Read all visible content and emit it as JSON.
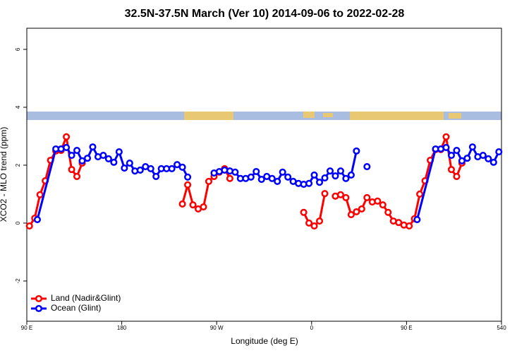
{
  "chart_data": {
    "type": "line",
    "title": "32.5N-37.5N March (Ver 10)   2014-09-06 to 2022-02-28",
    "xlabel": "Longitude (deg E)",
    "ylabel": "XCO2 - MLO trend (ppm)",
    "xlim": [
      90,
      540
    ],
    "ylim": [
      -3.39,
      6.73
    ],
    "xticks": [
      {
        "value": 90,
        "label": "90 E"
      },
      180,
      {
        "value": 270,
        "label": "90 W"
      },
      {
        "value": 360,
        "label": "0"
      },
      {
        "value": 450,
        "label": "90 E"
      },
      540
    ],
    "yticks": [
      -2,
      0,
      2,
      4,
      6
    ],
    "legend": "bottom-left",
    "series": [
      {
        "name": "Land (Nadir&Glint)",
        "color": "#ff0000",
        "x": [
          92.5,
          97.5,
          102.5,
          107.5,
          112.5,
          117.5,
          122.5,
          127.5,
          132.5,
          137.5,
          142.5,
          147.5,
          237.5,
          242.5,
          247.5,
          252.5,
          257.5,
          262.5,
          267.5,
          272.5,
          277.5,
          282.5,
          287.5,
          352.5,
          357.5,
          362.5,
          367.5,
          372.5,
          377.5,
          382.5,
          387.5,
          392.5,
          397.5,
          402.5,
          407.5,
          412.5,
          417.5,
          422.5,
          427.5,
          432.5,
          437.5,
          442.5,
          447.5,
          452.5,
          457.5,
          462.5,
          467.5,
          472.5,
          477.5,
          482.5,
          487.5,
          492.5,
          497.5,
          502.5
        ],
        "values": [
          -0.1,
          0.17,
          0.98,
          1.46,
          2.17,
          2.49,
          2.51,
          2.98,
          1.85,
          1.61,
          2.07,
          null,
          0.66,
          1.32,
          0.63,
          0.49,
          0.56,
          1.44,
          1.61,
          1.76,
          1.88,
          1.54,
          null,
          0.37,
          0,
          -0.1,
          0.07,
          1.02,
          null,
          0.93,
          0.98,
          0.88,
          0.29,
          0.39,
          0.49,
          0.88,
          0.73,
          0.76,
          0.63,
          0.37,
          0.07,
          0.02,
          -0.07,
          -0.1,
          0.15,
          1.0,
          1.46,
          2.17,
          2.54,
          2.54,
          2.98,
          1.85,
          1.61,
          2.07
        ]
      },
      {
        "name": "Ocean (Glint)",
        "color": "#0000ff",
        "x": [
          100,
          117.5,
          122.5,
          127.5,
          132.5,
          137.5,
          142.5,
          147.5,
          152.5,
          157.5,
          162.5,
          167.5,
          172.5,
          177.5,
          182.5,
          187.5,
          192.5,
          197.5,
          202.5,
          207.5,
          212.5,
          217.5,
          222.5,
          227.5,
          232.5,
          237.5,
          242.5,
          247.5,
          267.5,
          272.5,
          277.5,
          282.5,
          287.5,
          292.5,
          297.5,
          302.5,
          307.5,
          312.5,
          317.5,
          322.5,
          327.5,
          332.5,
          337.5,
          342.5,
          347.5,
          352.5,
          357.5,
          362.5,
          367.5,
          372.5,
          377.5,
          382.5,
          387.5,
          392.5,
          397.5,
          402.5,
          407.5,
          412.5,
          417.5,
          460,
          477.5,
          482.5,
          487.5,
          492.5,
          497.5,
          502.5,
          507.5,
          512.5,
          517.5,
          522.5,
          527.5,
          532.5,
          537.5
        ],
        "values": [
          0.12,
          2.56,
          2.56,
          2.61,
          2.34,
          2.51,
          2.15,
          2.24,
          2.63,
          2.29,
          2.34,
          2.22,
          2.1,
          2.46,
          1.9,
          2.07,
          1.8,
          1.83,
          1.95,
          1.88,
          1.61,
          1.88,
          1.88,
          1.88,
          2.02,
          1.93,
          1.59,
          null,
          1.73,
          1.78,
          1.83,
          1.8,
          1.76,
          1.54,
          1.54,
          1.59,
          1.78,
          1.51,
          1.61,
          1.54,
          1.44,
          1.76,
          1.59,
          1.44,
          1.37,
          1.34,
          1.37,
          1.66,
          1.41,
          1.56,
          1.8,
          1.63,
          1.8,
          1.54,
          1.66,
          2.49,
          null,
          1.95,
          null,
          0.12,
          2.56,
          2.56,
          2.61,
          2.34,
          2.51,
          2.15,
          2.24,
          2.63,
          2.29,
          2.34,
          2.22,
          2.1,
          2.46
        ]
      }
    ]
  }
}
